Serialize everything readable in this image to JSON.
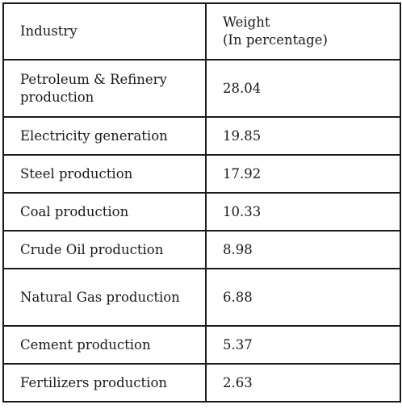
{
  "table": {
    "header": {
      "industry": "Industry",
      "weight_line1": "Weight",
      "weight_line2": "(In percentage)"
    },
    "rows": [
      {
        "industry": "Petroleum & Refinery production",
        "weight": "28.04"
      },
      {
        "industry": "Electricity generation",
        "weight": "19.85"
      },
      {
        "industry": "Steel production",
        "weight": "17.92"
      },
      {
        "industry": "Coal production",
        "weight": "10.33"
      },
      {
        "industry": "Crude Oil production",
        "weight": "8.98"
      },
      {
        "industry": "Natural Gas production",
        "weight": "6.88"
      },
      {
        "industry": "Cement production",
        "weight": "5.37"
      },
      {
        "industry": "Fertilizers production",
        "weight": "2.63"
      }
    ]
  }
}
